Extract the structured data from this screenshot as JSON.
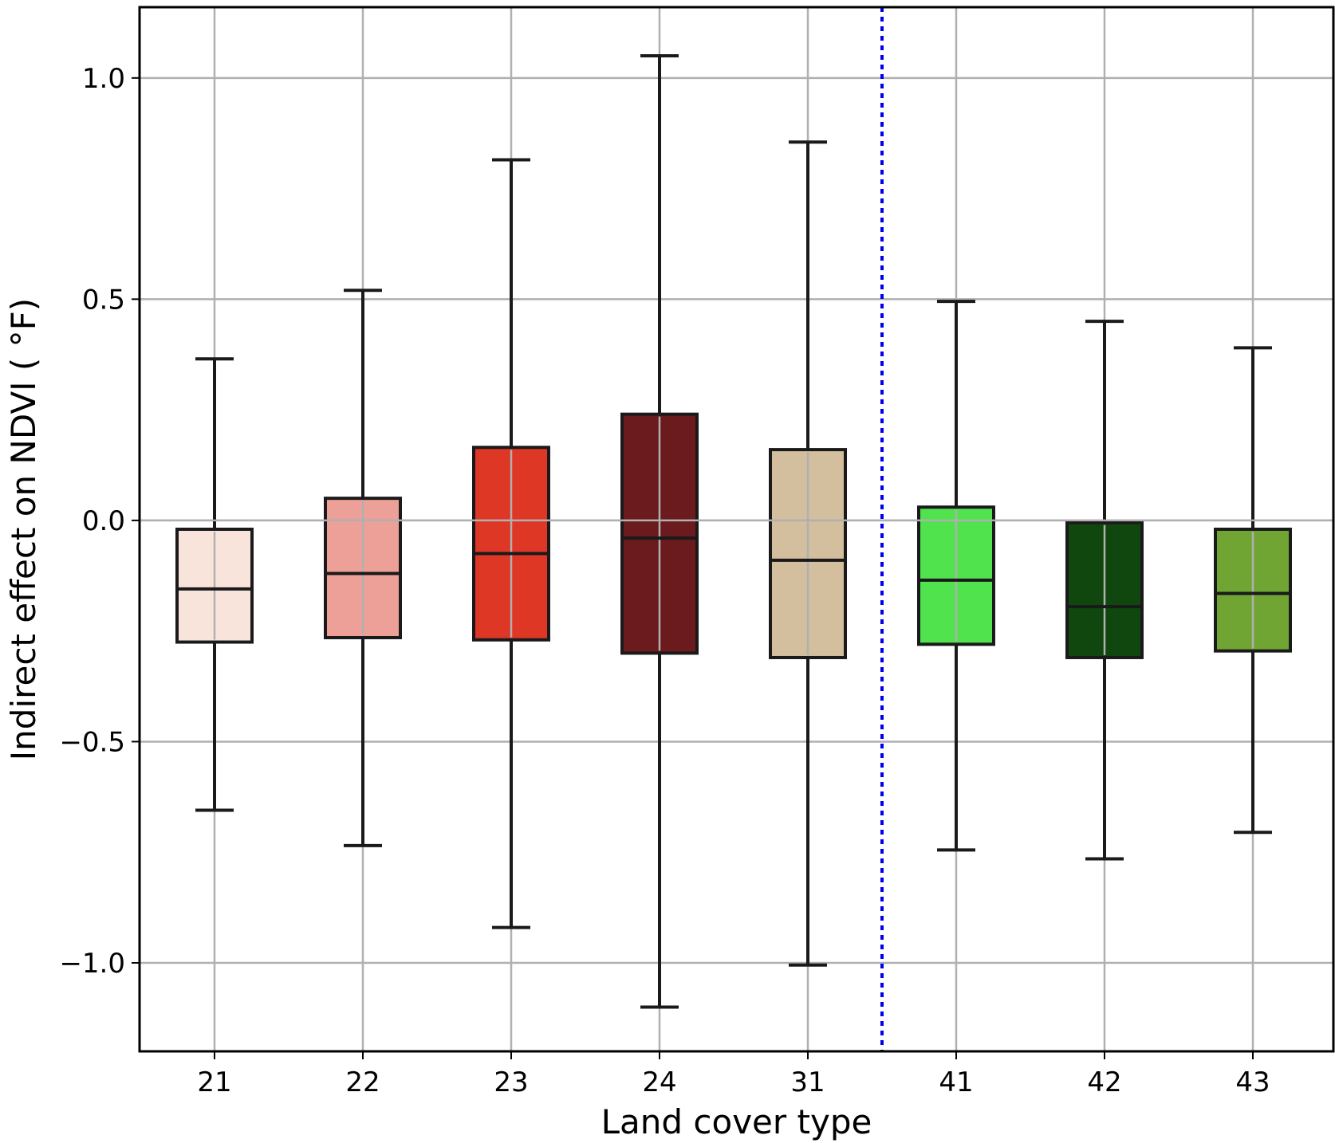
{
  "chart_data": {
    "type": "boxplot",
    "title": "",
    "xlabel": "Land cover type",
    "ylabel": "Indirect effect on NDVI ($^\\circ$F)",
    "ylabel_display": "Indirect effect on NDVI ( °F)",
    "ylim": [
      -1.2,
      1.16
    ],
    "yticks": [
      1.0,
      0.5,
      0.0,
      -0.5,
      -1.0
    ],
    "ytick_labels": [
      "1.0",
      "0.5",
      "0.0",
      "−0.5",
      "−1.0"
    ],
    "grid": true,
    "categories": [
      "21",
      "22",
      "23",
      "24",
      "31",
      "41",
      "42",
      "43"
    ],
    "boxes": [
      {
        "category": "21",
        "whisker_low": -0.655,
        "q1": -0.275,
        "median": -0.155,
        "q3": -0.02,
        "whisker_high": 0.365,
        "color": "#f8e4da"
      },
      {
        "category": "22",
        "whisker_low": -0.735,
        "q1": -0.265,
        "median": -0.12,
        "q3": 0.05,
        "whisker_high": 0.52,
        "color": "#eda097"
      },
      {
        "category": "23",
        "whisker_low": -0.92,
        "q1": -0.27,
        "median": -0.075,
        "q3": 0.165,
        "whisker_high": 0.815,
        "color": "#de3725"
      },
      {
        "category": "24",
        "whisker_low": -1.1,
        "q1": -0.3,
        "median": -0.04,
        "q3": 0.24,
        "whisker_high": 1.05,
        "color": "#6b1a1e"
      },
      {
        "category": "31",
        "whisker_low": -1.005,
        "q1": -0.31,
        "median": -0.09,
        "q3": 0.16,
        "whisker_high": 0.855,
        "color": "#d3bf9e"
      },
      {
        "category": "41",
        "whisker_low": -0.745,
        "q1": -0.28,
        "median": -0.135,
        "q3": 0.03,
        "whisker_high": 0.495,
        "color": "#50e34e"
      },
      {
        "category": "42",
        "whisker_low": -0.765,
        "q1": -0.31,
        "median": -0.195,
        "q3": -0.005,
        "whisker_high": 0.45,
        "color": "#10470f"
      },
      {
        "category": "43",
        "whisker_low": -0.705,
        "q1": -0.295,
        "median": -0.165,
        "q3": -0.02,
        "whisker_high": 0.39,
        "color": "#70a533"
      }
    ],
    "divider": {
      "between": [
        "31",
        "41"
      ],
      "style": "dotted",
      "color": "#0000ee"
    },
    "edge_color": "#1a1a1a",
    "grid_color": "#b0b0b0"
  }
}
